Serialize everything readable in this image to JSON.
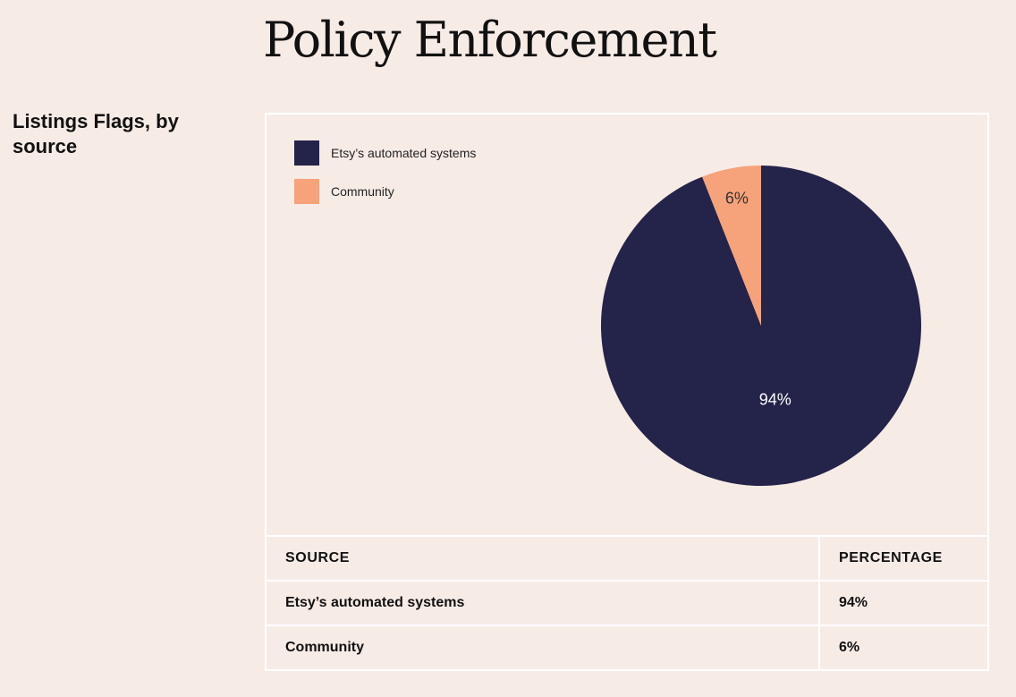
{
  "page": {
    "title": "Policy Enforcement",
    "section_title": "Listings Flags, by source"
  },
  "colors": {
    "background": "#f7ebe6",
    "automated": "#242349",
    "community": "#f6a27a"
  },
  "chart_data": {
    "type": "pie",
    "title": "Listings Flags, by source",
    "legend_position": "top-left",
    "slices": [
      {
        "label": "Etsy’s automated systems",
        "value": 94,
        "display": "94%",
        "color": "#242349",
        "label_color": "#ffffff"
      },
      {
        "label": "Community",
        "value": 6,
        "display": "6%",
        "color": "#f6a27a",
        "label_color": "#333333"
      }
    ]
  },
  "table": {
    "headers": [
      "SOURCE",
      "PERCENTAGE"
    ],
    "rows": [
      [
        "Etsy’s automated systems",
        "94%"
      ],
      [
        "Community",
        "6%"
      ]
    ]
  }
}
